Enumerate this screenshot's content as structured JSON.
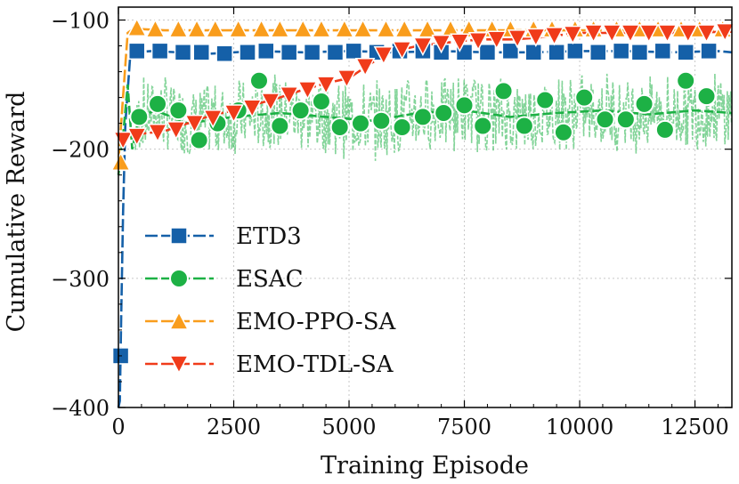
{
  "chart_data": {
    "type": "line",
    "title": "",
    "xlabel": "Training Episode",
    "ylabel": "Cumulative Reward",
    "xlim": [
      0,
      13300
    ],
    "ylim": [
      -400,
      -90
    ],
    "xticks": [
      0,
      2500,
      5000,
      7500,
      10000,
      12500
    ],
    "xtick_labels": [
      "0",
      "2500",
      "5000",
      "7500",
      "10000",
      "12500"
    ],
    "yticks": [
      -400,
      -300,
      -200,
      -100
    ],
    "ytick_labels": [
      "−400",
      "−300",
      "−200",
      "−100"
    ],
    "grid": true,
    "legend_position": "lower-left",
    "series": [
      {
        "name": "ETD3",
        "color": "#1560a8",
        "marker": "square",
        "x": [
          0,
          30,
          60,
          100,
          150,
          250,
          400,
          700,
          1300,
          2000,
          3000,
          4000,
          5000,
          6000,
          7000,
          8000,
          9000,
          10000,
          11000,
          12000,
          13000,
          13300
        ],
        "y": [
          -400,
          -395,
          -330,
          -250,
          -180,
          -130,
          -125,
          -124,
          -125,
          -126,
          -124,
          -125,
          -124,
          -125,
          -124,
          -125,
          -125,
          -124,
          -124,
          -125,
          -124,
          -125
        ],
        "markers_x": [
          50,
          400,
          900,
          1400,
          1800,
          2300,
          2800,
          3200,
          3700,
          4200,
          4700,
          5100,
          5600,
          6100,
          6600,
          7000,
          7500,
          8000,
          8500,
          9000,
          9500,
          9900,
          10400,
          10900,
          11300,
          11800,
          12300,
          12800
        ],
        "markers_y": [
          -360,
          -124,
          -124,
          -125,
          -125,
          -126,
          -125,
          -124,
          -125,
          -125,
          -125,
          -124,
          -125,
          -124,
          -124,
          -125,
          -125,
          -125,
          -124,
          -125,
          -125,
          -124,
          -125,
          -124,
          -125,
          -124,
          -125,
          -124
        ]
      },
      {
        "name": "ESAC",
        "color": "#1db145",
        "marker": "circle",
        "x": [
          0,
          100,
          200,
          300,
          450,
          800,
          1500,
          2500,
          3500,
          4500,
          5500,
          6500,
          7500,
          8500,
          9500,
          10500,
          11500,
          12500,
          13300
        ],
        "y": [
          -220,
          -190,
          -150,
          -200,
          -175,
          -170,
          -180,
          -175,
          -172,
          -175,
          -178,
          -172,
          -170,
          -175,
          -172,
          -170,
          -173,
          -170,
          -172
        ],
        "markers_x": [
          450,
          850,
          1300,
          1750,
          2150,
          2600,
          3050,
          3500,
          3950,
          4400,
          4800,
          5250,
          5700,
          6150,
          6600,
          7050,
          7500,
          7900,
          8350,
          8800,
          9250,
          9650,
          10100,
          10550,
          11000,
          11400,
          11850,
          12300,
          12750
        ],
        "markers_y": [
          -175,
          -165,
          -170,
          -193,
          -180,
          -170,
          -147,
          -182,
          -170,
          -163,
          -183,
          -180,
          -178,
          -183,
          -175,
          -172,
          -166,
          -182,
          -155,
          -182,
          -162,
          -187,
          -160,
          -177,
          -177,
          -165,
          -185,
          -147,
          -159
        ]
      },
      {
        "name": "EMO-PPO-SA",
        "color": "#f99d1c",
        "marker": "triangle-up",
        "x": [
          0,
          80,
          200,
          350,
          500,
          1000,
          2000,
          3000,
          5000,
          7000,
          9000,
          11000,
          13300
        ],
        "y": [
          -210,
          -170,
          -110,
          -106,
          -107,
          -108,
          -108,
          -108,
          -108,
          -108,
          -108,
          -108,
          -108
        ],
        "markers_x": [
          50,
          400,
          800,
          1300,
          1700,
          2100,
          2600,
          3100,
          3500,
          4000,
          4400,
          4900,
          5300,
          5800,
          6200,
          6700,
          7200,
          7600,
          8100,
          8500,
          9000,
          9400,
          9900,
          10300,
          10800,
          11300,
          11700,
          12200,
          12600,
          13100
        ],
        "markers_y": [
          -210,
          -106,
          -107,
          -107,
          -107,
          -107,
          -107,
          -107,
          -107,
          -107,
          -107,
          -107,
          -107,
          -107,
          -107,
          -107,
          -107,
          -107,
          -107,
          -107,
          -107,
          -107,
          -107,
          -107,
          -107,
          -107,
          -107,
          -107,
          -107,
          -107
        ]
      },
      {
        "name": "EMO-TDL-SA",
        "color": "#f03b1a",
        "marker": "triangle-down",
        "x": [
          0,
          500,
          1000,
          1500,
          2000,
          2500,
          3000,
          3500,
          4000,
          4500,
          5000,
          5500,
          6000,
          6500,
          7000,
          7500,
          8000,
          8500,
          9000,
          9500,
          10000,
          11000,
          12000,
          13300
        ],
        "y": [
          -192,
          -188,
          -186,
          -180,
          -174,
          -170,
          -165,
          -160,
          -154,
          -149,
          -145,
          -133,
          -124,
          -120,
          -118,
          -116,
          -115,
          -115,
          -114,
          -112,
          -110,
          -110,
          -110,
          -109
        ],
        "markers_x": [
          100,
          400,
          850,
          1250,
          1650,
          2050,
          2500,
          2900,
          3300,
          3700,
          4100,
          4500,
          4950,
          5350,
          5750,
          6150,
          6600,
          7000,
          7400,
          7800,
          8200,
          8650,
          9050,
          9450,
          9850,
          10300,
          10700,
          11100,
          11500,
          11900,
          12350,
          12750,
          13150
        ],
        "markers_y": [
          -193,
          -190,
          -187,
          -185,
          -180,
          -176,
          -172,
          -168,
          -163,
          -158,
          -154,
          -150,
          -145,
          -136,
          -127,
          -123,
          -120,
          -118,
          -117,
          -116,
          -115,
          -114,
          -113,
          -112,
          -111,
          -110,
          -110,
          -110,
          -110,
          -110,
          -110,
          -110,
          -109
        ]
      }
    ]
  }
}
